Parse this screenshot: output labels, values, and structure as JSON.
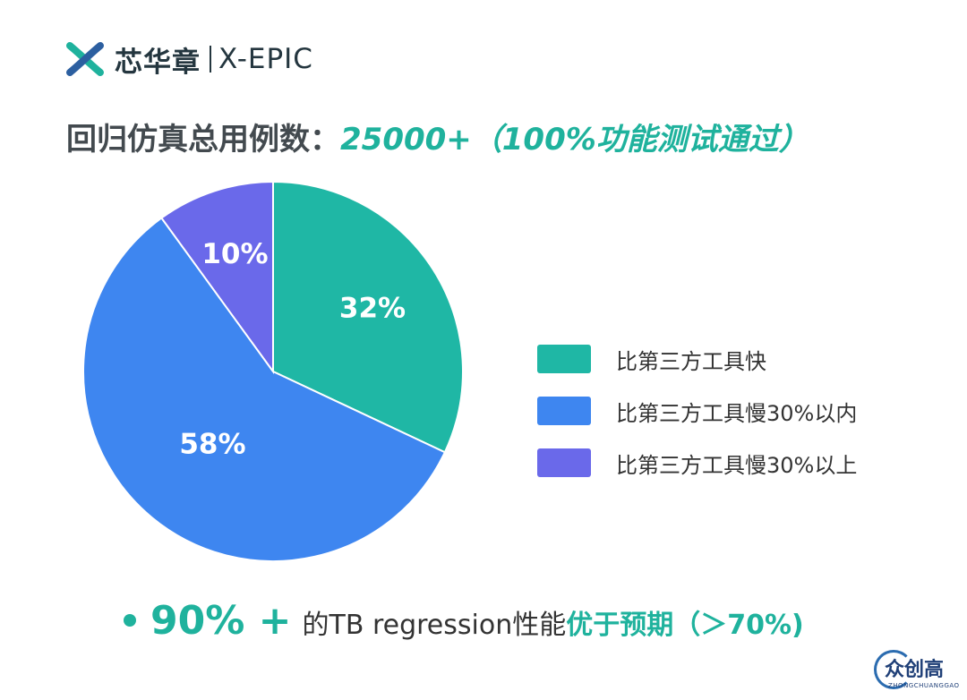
{
  "logo": {
    "cn": "芯华章",
    "en": "X-EPIC",
    "icon": "x-epic-logo-icon"
  },
  "headline": {
    "prefix": "回归仿真总用例数：",
    "value": "25000+（100%功能测试通过）"
  },
  "chart_data": {
    "type": "pie",
    "values": [
      32,
      58,
      10
    ],
    "labels": [
      "32%",
      "58%",
      "10%"
    ],
    "categories": [
      "比第三方工具快",
      "比第三方工具慢30%以内",
      "比第三方工具慢30%以上"
    ],
    "colors": [
      "#1fb7a5",
      "#3e86f0",
      "#6a69ea"
    ],
    "legend_position": "right"
  },
  "legend": [
    {
      "label": "比第三方工具快",
      "color": "#1fb7a5"
    },
    {
      "label": "比第三方工具慢30%以内",
      "color": "#3e86f0"
    },
    {
      "label": "比第三方工具慢30%以上",
      "color": "#6a69ea"
    }
  ],
  "bottom": {
    "big": "90% +",
    "mid": "的TB regression性能",
    "strong": "优于预期",
    "tail": "（＞70%)"
  },
  "watermark": {
    "cn": "众创高",
    "en": "ZHONGCHUANGGAO"
  }
}
